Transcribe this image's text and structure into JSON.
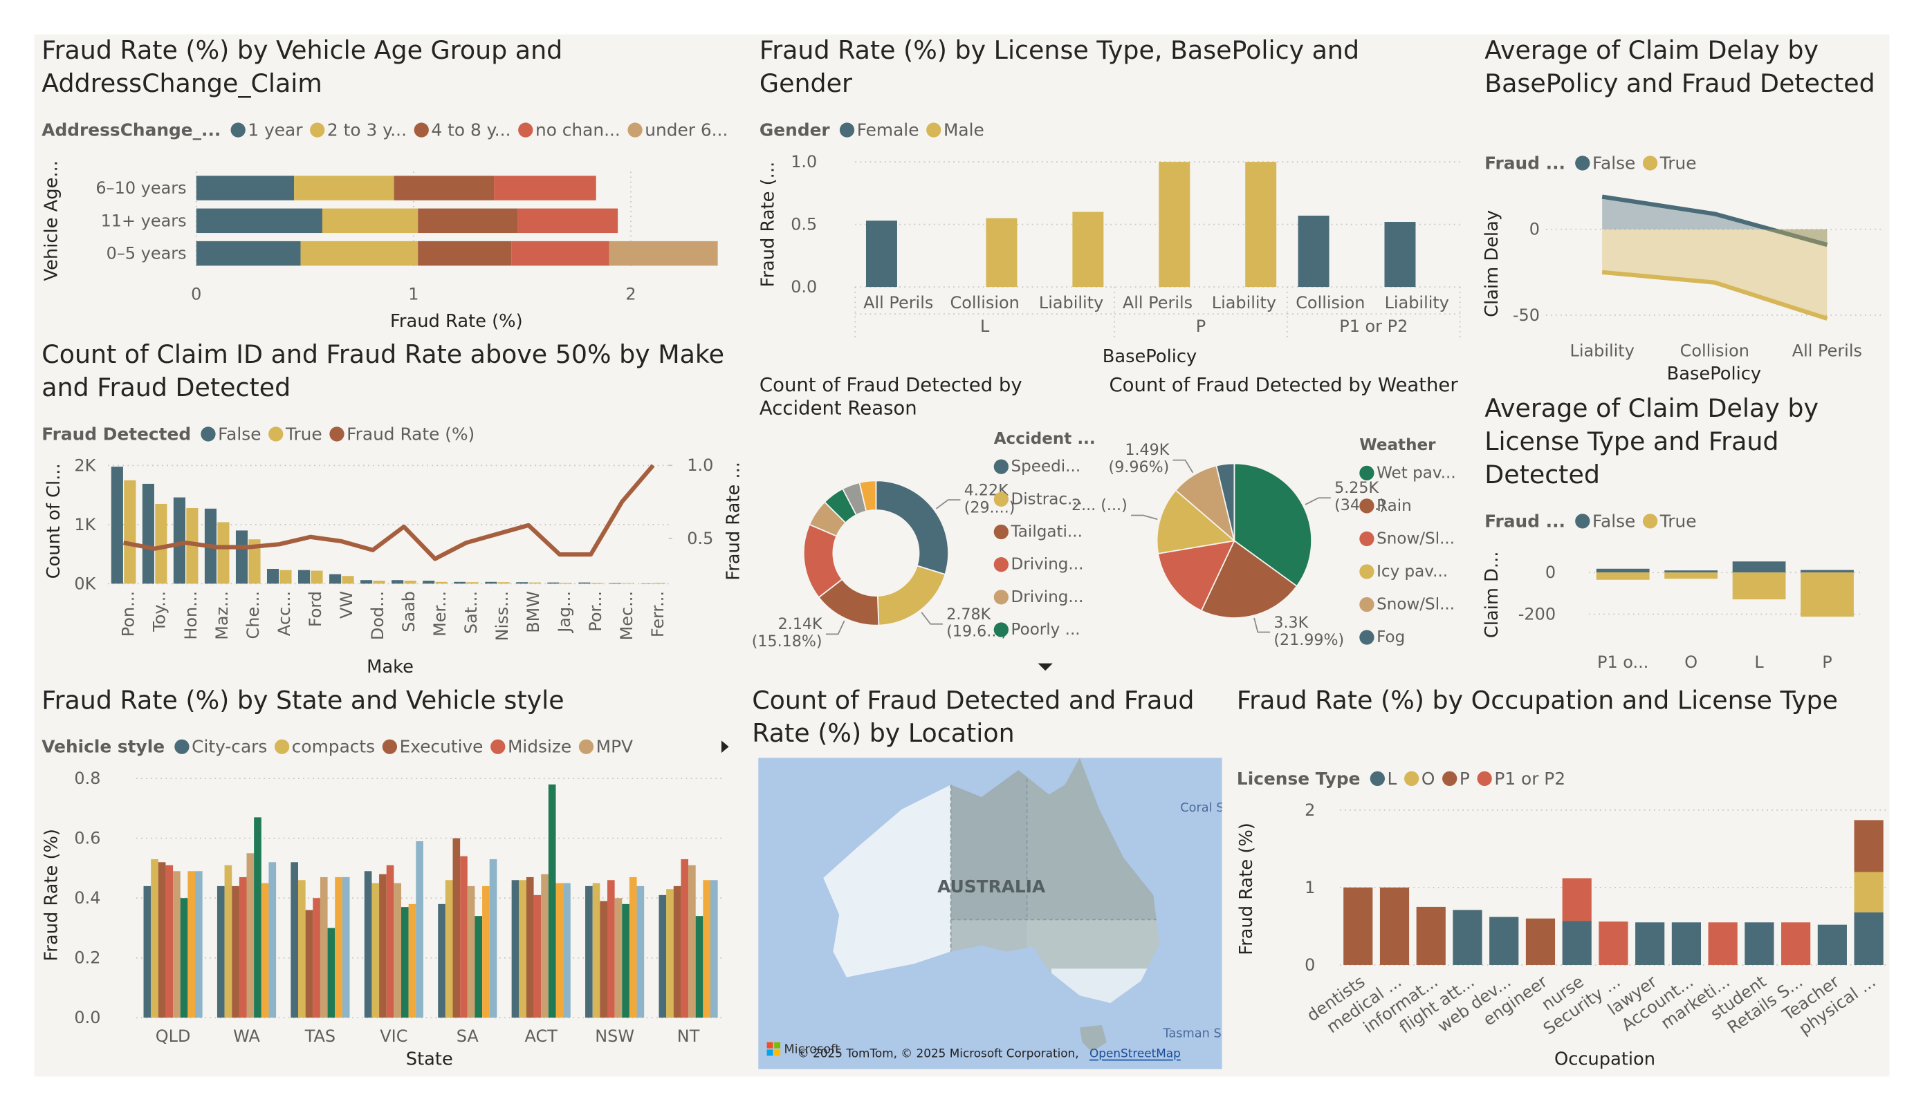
{
  "chart_data": [
    {
      "type": "hbar",
      "title": "Fraud Rate (%) by Vehicle Age Group and AddressChange_Claim",
      "legend_title": "AddressChange_...",
      "x_label": "Fraud Rate (%)",
      "y_label": "Vehicle Age...",
      "stacked": true,
      "categories": [
        "6–10 years",
        "11+ years",
        "0–5 years"
      ],
      "series": [
        {
          "name": "1 year",
          "color": "#4a6b78",
          "values": [
            0.45,
            0.58,
            0.48
          ]
        },
        {
          "name": "2 to 3 y...",
          "color": "#d6b656",
          "values": [
            0.46,
            0.44,
            0.54
          ]
        },
        {
          "name": "4 to 8 y...",
          "color": "#a65f3e",
          "values": [
            0.46,
            0.46,
            0.43
          ]
        },
        {
          "name": "no chan...",
          "color": "#d0614c",
          "values": [
            0.47,
            0.46,
            0.45
          ]
        },
        {
          "name": "under 6...",
          "color": "#c9a171",
          "values": [
            null,
            null,
            0.5
          ]
        }
      ],
      "xlim": [
        0,
        2.4
      ],
      "xticks": [
        0,
        1,
        2
      ],
      "grid": true
    },
    {
      "type": "bar",
      "title": "Fraud Rate (%) by License Type, BasePolicy and Gender",
      "legend_title": "Gender",
      "x_label": "BasePolicy",
      "y_label": "Fraud Rate (...",
      "stacked": false,
      "categories": [
        "All Perils",
        "Collision",
        "Liability",
        "All Perils",
        "Liability",
        "Collision",
        "Liability"
      ],
      "category_groups": [
        "L",
        "L",
        "L",
        "P",
        "P",
        "P1 or P2",
        "P1 or P2"
      ],
      "series": [
        {
          "name": "Female",
          "color": "#4a6b78",
          "values": [
            0.53,
            null,
            null,
            null,
            null,
            0.57,
            0.52
          ]
        },
        {
          "name": "Male",
          "color": "#d6b656",
          "values": [
            null,
            0.55,
            0.6,
            1.0,
            1.0,
            null,
            null
          ]
        }
      ],
      "ylim": [
        0,
        1.0
      ],
      "yticks": [
        {
          "value": 0,
          "label": "0.0"
        },
        0.5,
        {
          "value": 1,
          "label": "1.0"
        }
      ],
      "grid": true
    },
    {
      "type": "area",
      "title": "Average of Claim Delay by BasePolicy and Fraud Detected",
      "legend_title": "Fraud ...",
      "x_label": "BasePolicy",
      "y_label": "Claim Delay",
      "categories": [
        "Liability",
        "Collision",
        "All Perils"
      ],
      "series": [
        {
          "name": "False",
          "color": "#4a6b78",
          "values": [
            19,
            9,
            -9
          ]
        },
        {
          "name": "True",
          "color": "#d6b656",
          "values": [
            -25,
            -31,
            -52
          ]
        }
      ],
      "ylim": [
        -55,
        25
      ],
      "yticks": [
        -50,
        0
      ],
      "grid": true
    },
    {
      "type": "combo",
      "title": "Count of Claim ID and Fraud Rate above 50% by Make and Fraud Detected",
      "legend_title": "Fraud Detected",
      "x_label": "Make",
      "y_label": "Count of Cl...",
      "y2_label": "Fraud Rate ...",
      "stacked": false,
      "categories": [
        "Pon...",
        "Toy...",
        "Hon...",
        "Maz...",
        "Che...",
        "Acc...",
        "Ford",
        "VW",
        "Dod...",
        "Saab",
        "Mer...",
        "Sat...",
        "Niss...",
        "BMW",
        "Jag...",
        "Por...",
        "Mec...",
        "Ferr..."
      ],
      "series": [
        {
          "name": "False",
          "color": "#4a6b78",
          "values": [
            1980,
            1690,
            1460,
            1270,
            900,
            250,
            230,
            160,
            60,
            60,
            50,
            30,
            30,
            25,
            20,
            20,
            10,
            5
          ]
        },
        {
          "name": "True",
          "color": "#d6b656",
          "values": [
            1750,
            1350,
            1280,
            1040,
            750,
            230,
            220,
            130,
            50,
            50,
            30,
            25,
            25,
            20,
            15,
            15,
            10,
            15
          ]
        },
        {
          "name": "Fraud Rate (%)",
          "color": "#a65f3e",
          "axis": "y2",
          "values": [
            0.47,
            0.43,
            0.47,
            0.44,
            0.44,
            0.46,
            0.51,
            0.48,
            0.42,
            0.58,
            0.36,
            0.47,
            0.53,
            0.59,
            0.39,
            0.39,
            0.75,
            1.0
          ]
        }
      ],
      "ylim": [
        0,
        2200
      ],
      "yticks": [
        {
          "value": 0,
          "label": "0K"
        },
        {
          "value": 1000,
          "label": "1K"
        },
        {
          "value": 2000,
          "label": "2K"
        }
      ],
      "y2lim": [
        0.19,
        1.08
      ],
      "y2ticks": [
        0.5,
        {
          "value": 1,
          "label": "1.0"
        }
      ],
      "grid": true
    },
    {
      "type": "donut",
      "title": "Count of Fraud Detected by Accident Reason",
      "legend_title": "Accident ...",
      "categories": [
        "Speedi...",
        "Distrac...",
        "Tailgati...",
        "Driving...",
        "Driving...",
        "Poorly ...",
        null,
        null
      ],
      "values": [
        4220,
        2780,
        2140,
        2400,
        850,
        700,
        560,
        520
      ],
      "value_labels": [
        "4.22K (29....)",
        "2.78K (19.6...)",
        "2.14K (15.18%)",
        null,
        null,
        null,
        null,
        null
      ],
      "colors": [
        "#4a6b78",
        "#d6b656",
        "#a65f3e",
        "#d0614c",
        "#c9a171",
        "#1f7a55",
        "#9a9a96",
        "#f2a93b"
      ]
    },
    {
      "type": "pie",
      "title": "Count of Fraud Detected by Weather",
      "legend_title": "Weather",
      "categories": [
        "Wet pav...",
        "Rain",
        "Snow/Sl...",
        "Icy pav...",
        "Snow/Sl...",
        "Fog"
      ],
      "values": [
        5250,
        3300,
        2300,
        2100,
        1490,
        560
      ],
      "value_labels": [
        "5.25K (34....)",
        "3.3K (21.99%)",
        null,
        "2... (...)",
        "1.49K (9.96%)",
        null
      ],
      "colors": [
        "#1f7a55",
        "#a65f3e",
        "#d0614c",
        "#d6b656",
        "#c9a171",
        "#4a6b78"
      ]
    },
    {
      "type": "bar",
      "title": "Average of Claim Delay by License Type and Fraud Detected",
      "legend_title": "Fraud ...",
      "y_label": "Claim D...",
      "stacked": true,
      "categories": [
        "P1 o...",
        "O",
        "L",
        "P"
      ],
      "series": [
        {
          "name": "False",
          "color": "#4a6b78",
          "values": [
            18,
            10,
            53,
            12
          ]
        },
        {
          "name": "True",
          "color": "#d6b656",
          "values": [
            -35,
            -30,
            -129,
            -212
          ]
        }
      ],
      "ylim": [
        -230,
        70
      ],
      "yticks": [
        -200,
        0
      ],
      "grid": true
    },
    {
      "type": "bar",
      "title": "Fraud Rate (%) by State and Vehicle style",
      "legend_title": "Vehicle style",
      "x_label": "State",
      "y_label": "Fraud Rate (%)",
      "stacked": false,
      "categories": [
        "QLD",
        "WA",
        "TAS",
        "VIC",
        "SA",
        "ACT",
        "NSW",
        "NT"
      ],
      "series": [
        {
          "name": "City-cars",
          "color": "#4a6b78",
          "values": [
            0.44,
            0.44,
            0.52,
            0.49,
            0.38,
            0.46,
            0.44,
            0.41
          ]
        },
        {
          "name": "compacts",
          "color": "#d6b656",
          "values": [
            0.53,
            0.51,
            0.46,
            0.45,
            0.46,
            0.46,
            0.45,
            0.43
          ]
        },
        {
          "name": "Executive",
          "color": "#a65f3e",
          "values": [
            0.52,
            0.44,
            0.36,
            0.48,
            0.6,
            0.47,
            0.39,
            0.44
          ]
        },
        {
          "name": "Midsize",
          "color": "#d0614c",
          "values": [
            0.51,
            0.47,
            0.4,
            0.51,
            0.54,
            0.41,
            0.46,
            0.53
          ]
        },
        {
          "name": "MPV",
          "color": "#c9a171",
          "values": [
            0.49,
            0.55,
            0.47,
            0.45,
            0.44,
            0.48,
            0.4,
            0.51
          ]
        },
        {
          "name": null,
          "color": "#1f7a55",
          "values": [
            0.4,
            0.67,
            0.3,
            0.37,
            0.34,
            0.78,
            0.38,
            0.34
          ]
        },
        {
          "name": null,
          "color": "#f2a93b",
          "values": [
            0.49,
            0.45,
            0.47,
            0.38,
            0.44,
            0.45,
            0.47,
            0.46
          ]
        },
        {
          "name": null,
          "color": "#8db4c8",
          "values": [
            0.49,
            0.52,
            0.47,
            0.59,
            0.53,
            0.45,
            0.44,
            0.46
          ]
        }
      ],
      "ylim": [
        0,
        0.82
      ],
      "yticks": [
        {
          "value": 0,
          "label": "0.0"
        },
        0.2,
        0.4,
        0.6,
        0.8
      ],
      "grid": true
    },
    {
      "type": "bar",
      "title": "Fraud Rate (%) by Occupation and License Type",
      "legend_title": "License Type",
      "x_label": "Occupation",
      "y_label": "Fraud Rate (%)",
      "stacked": true,
      "categories": [
        "dentists",
        "medical ...",
        "informat...",
        "flight att...",
        "web dev...",
        "engineer",
        "nurse",
        "Security ...",
        "lawyer",
        "Account...",
        "marketi...",
        "student",
        "Retails S...",
        "Teacher",
        "physical ..."
      ],
      "series": [
        {
          "name": "L",
          "color": "#4a6b78",
          "values": [
            null,
            null,
            null,
            0.71,
            0.62,
            null,
            0.57,
            null,
            0.55,
            0.55,
            null,
            0.55,
            null,
            0.52,
            0.68
          ]
        },
        {
          "name": "O",
          "color": "#d6b656",
          "values": [
            null,
            null,
            null,
            null,
            null,
            null,
            null,
            null,
            null,
            null,
            null,
            null,
            null,
            null,
            0.52
          ]
        },
        {
          "name": "P",
          "color": "#a65f3e",
          "values": [
            1.0,
            1.0,
            0.75,
            null,
            null,
            0.6,
            null,
            null,
            null,
            null,
            null,
            null,
            null,
            null,
            0.67
          ]
        },
        {
          "name": "P1 or P2",
          "color": "#d0614c",
          "values": [
            null,
            null,
            null,
            null,
            null,
            null,
            0.55,
            0.56,
            null,
            null,
            0.55,
            null,
            0.55,
            null,
            null
          ]
        }
      ],
      "ylim": [
        0,
        2.2
      ],
      "yticks": [
        0,
        1,
        2
      ],
      "grid": true
    }
  ],
  "map": {
    "title": "Count of Fraud Detected and Fraud Rate (%) by Location",
    "country_label": "AUSTRALIA",
    "sea_labels": [
      "Coral S",
      "Tasman S"
    ],
    "provider": "Microsoft",
    "attribution": "© 2025 TomTom, © 2025 Microsoft Corporation,",
    "attribution_link": "OpenStreetMap"
  }
}
